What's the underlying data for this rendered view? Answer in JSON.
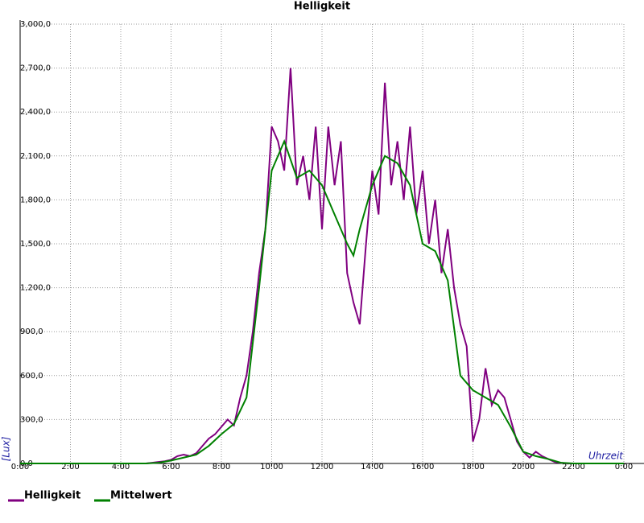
{
  "chart_data": {
    "type": "line",
    "title": "Helligkeit",
    "y_label": "[Lux]",
    "x_label": "Uhrzeit",
    "grid": true,
    "legend": "bottom-left",
    "xlim": [
      0,
      24
    ],
    "xticks": [
      {
        "value": 0,
        "label": "0:00"
      },
      {
        "value": 2,
        "label": "2:00"
      },
      {
        "value": 4,
        "label": "4:00"
      },
      {
        "value": 6,
        "label": "6:00"
      },
      {
        "value": 8,
        "label": "8:00"
      },
      {
        "value": 10,
        "label": "10:00"
      },
      {
        "value": 12,
        "label": "12:00"
      },
      {
        "value": 14,
        "label": "14:00"
      },
      {
        "value": 16,
        "label": "16:00"
      },
      {
        "value": 18,
        "label": "18:00"
      },
      {
        "value": 20,
        "label": "20:00"
      },
      {
        "value": 22,
        "label": "22:00"
      },
      {
        "value": 24,
        "label": "0:00"
      }
    ],
    "ylim": [
      0,
      3000
    ],
    "yticks": [
      {
        "value": 0,
        "label": "0,0"
      },
      {
        "value": 300,
        "label": "300,0"
      },
      {
        "value": 600,
        "label": "600,0"
      },
      {
        "value": 900,
        "label": "900,0"
      },
      {
        "value": 1200,
        "label": "1,200,0"
      },
      {
        "value": 1500,
        "label": "1,500,0"
      },
      {
        "value": 1800,
        "label": "1,800,0"
      },
      {
        "value": 2100,
        "label": "2,100,0"
      },
      {
        "value": 2400,
        "label": "2,400,0"
      },
      {
        "value": 2700,
        "label": "2,700,0"
      },
      {
        "value": 3000,
        "label": "3,000,0"
      }
    ],
    "series": [
      {
        "name": "Helligkeit",
        "color": "#800080",
        "x": [
          0,
          5,
          5.25,
          5.5,
          5.75,
          6,
          6.25,
          6.5,
          6.75,
          7,
          7.25,
          7.5,
          7.75,
          8,
          8.25,
          8.5,
          8.75,
          9,
          9.25,
          9.5,
          9.75,
          10,
          10.25,
          10.5,
          10.75,
          11,
          11.25,
          11.5,
          11.75,
          12,
          12.25,
          12.5,
          12.75,
          13,
          13.25,
          13.5,
          13.75,
          14,
          14.25,
          14.5,
          14.75,
          15,
          15.25,
          15.5,
          15.75,
          16,
          16.25,
          16.5,
          16.75,
          17,
          17.25,
          17.5,
          17.75,
          18,
          18.25,
          18.5,
          18.75,
          19,
          19.25,
          19.5,
          19.75,
          20,
          20.25,
          20.5,
          20.75,
          21,
          21.25,
          21.5,
          21.75,
          24
        ],
        "values": [
          0,
          0,
          5,
          10,
          15,
          25,
          50,
          60,
          50,
          70,
          120,
          170,
          200,
          250,
          300,
          260,
          450,
          600,
          900,
          1300,
          1600,
          2300,
          2200,
          2000,
          2700,
          1900,
          2100,
          1800,
          2300,
          1600,
          2300,
          1900,
          2200,
          1300,
          1100,
          950,
          1500,
          2000,
          1700,
          2600,
          1900,
          2200,
          1800,
          2300,
          1700,
          2000,
          1500,
          1800,
          1300,
          1600,
          1200,
          950,
          800,
          150,
          300,
          650,
          400,
          500,
          450,
          300,
          150,
          80,
          40,
          80,
          50,
          30,
          10,
          5,
          0,
          0
        ]
      },
      {
        "name": "Mittelwert",
        "color": "#008000",
        "x": [
          0,
          5,
          5.5,
          6,
          6.5,
          7,
          7.5,
          8,
          8.5,
          9,
          9.5,
          10,
          10.5,
          11,
          11.5,
          12,
          12.5,
          13,
          13.25,
          13.5,
          14,
          14.5,
          15,
          15.5,
          16,
          16.5,
          17,
          17.5,
          18,
          18.5,
          19,
          19.5,
          20,
          20.5,
          21,
          21.5,
          22,
          24
        ],
        "values": [
          0,
          0,
          5,
          20,
          40,
          60,
          120,
          200,
          270,
          450,
          1200,
          2000,
          2200,
          1950,
          2000,
          1900,
          1700,
          1500,
          1420,
          1600,
          1900,
          2100,
          2050,
          1900,
          1500,
          1450,
          1250,
          600,
          500,
          450,
          400,
          250,
          80,
          50,
          30,
          5,
          0,
          0
        ]
      }
    ]
  }
}
